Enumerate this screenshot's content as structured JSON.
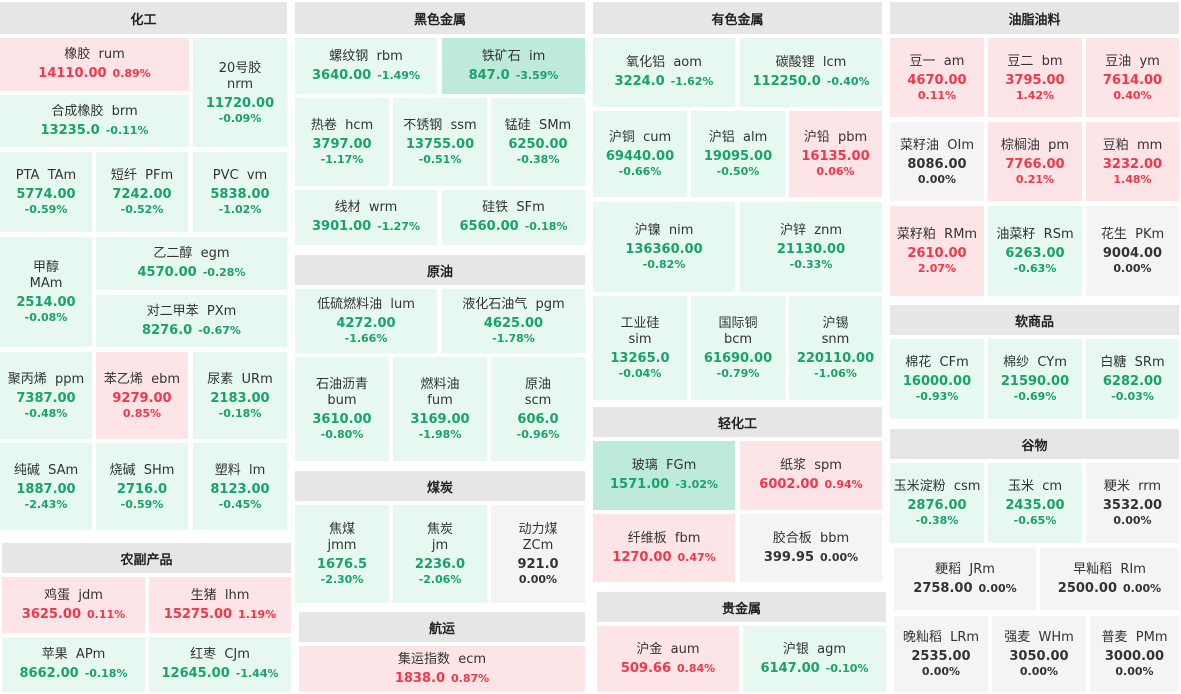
{
  "sections": [
    {
      "title": "化工",
      "items": [
        {
          "name": "橡胶  rum",
          "price": "14110.00",
          "change": "0.89%",
          "trend": "up"
        },
        {
          "name": "20号胶 nrm",
          "price": "11720.00",
          "change": "-0.09%",
          "trend": "down"
        },
        {
          "name": "合成橡胶  brm",
          "price": "13235.0",
          "change": "-0.11%",
          "trend": "down"
        },
        {
          "name": "PTA  TAm",
          "price": "5774.00",
          "change": "-0.59%",
          "trend": "down"
        },
        {
          "name": "短纤  PFm",
          "price": "7242.00",
          "change": "-0.52%",
          "trend": "down"
        },
        {
          "name": "PVC  vm",
          "price": "5838.00",
          "change": "-1.02%",
          "trend": "down"
        },
        {
          "name": "甲醇 MAm",
          "price": "2514.00",
          "change": "-0.08%",
          "trend": "down"
        },
        {
          "name": "乙二醇  egm",
          "price": "4570.00",
          "change": "-0.28%",
          "trend": "down"
        },
        {
          "name": "对二甲苯  PXm",
          "price": "8276.0",
          "change": "-0.67%",
          "trend": "down"
        },
        {
          "name": "聚丙烯  ppm",
          "price": "7387.00",
          "change": "-0.48%",
          "trend": "down"
        },
        {
          "name": "苯乙烯  ebm",
          "price": "9279.00",
          "change": "0.85%",
          "trend": "up"
        },
        {
          "name": "尿素  URm",
          "price": "2183.00",
          "change": "-0.18%",
          "trend": "down"
        },
        {
          "name": "纯碱  SAm",
          "price": "1887.00",
          "change": "-2.43%",
          "trend": "down"
        },
        {
          "name": "烧碱  SHm",
          "price": "2716.0",
          "change": "-0.59%",
          "trend": "down"
        },
        {
          "name": "塑料  lm",
          "price": "8123.00",
          "change": "-0.45%",
          "trend": "down"
        }
      ]
    },
    {
      "title": "农副产品",
      "items": [
        {
          "name": "鸡蛋  jdm",
          "price": "3625.00",
          "change": "0.11%",
          "trend": "up"
        },
        {
          "name": "生猪  lhm",
          "price": "15275.00",
          "change": "1.19%",
          "trend": "up"
        },
        {
          "name": "苹果  APm",
          "price": "8662.00",
          "change": "-0.18%",
          "trend": "down"
        },
        {
          "name": "红枣  CJm",
          "price": "12645.00",
          "change": "-1.44%",
          "trend": "down"
        }
      ]
    },
    {
      "title": "黑色金属",
      "items": [
        {
          "name": "螺纹钢  rbm",
          "price": "3640.00",
          "change": "-1.49%",
          "trend": "down"
        },
        {
          "name": "铁矿石  im",
          "price": "847.0",
          "change": "-3.59%",
          "trend": "down"
        },
        {
          "name": "热卷  hcm",
          "price": "3797.00",
          "change": "-1.17%",
          "trend": "down"
        },
        {
          "name": "不锈钢  ssm",
          "price": "13755.00",
          "change": "-0.51%",
          "trend": "down"
        },
        {
          "name": "锰硅  SMm",
          "price": "6250.00",
          "change": "-0.38%",
          "trend": "down"
        },
        {
          "name": "线材  wrm",
          "price": "3901.00",
          "change": "-1.27%",
          "trend": "down"
        },
        {
          "name": "硅铁  SFm",
          "price": "6560.00",
          "change": "-0.18%",
          "trend": "down"
        }
      ]
    },
    {
      "title": "原油",
      "items": [
        {
          "name": "低硫燃料油  lum",
          "price": "4272.00",
          "change": "-1.66%",
          "trend": "down"
        },
        {
          "name": "液化石油气  pgm",
          "price": "4625.00",
          "change": "-1.78%",
          "trend": "down"
        },
        {
          "name": "石油沥青 bum",
          "price": "3610.00",
          "change": "-0.80%",
          "trend": "down"
        },
        {
          "name": "燃料油 fum",
          "price": "3169.00",
          "change": "-1.98%",
          "trend": "down"
        },
        {
          "name": "原油 scm",
          "price": "606.0",
          "change": "-0.96%",
          "trend": "down"
        }
      ]
    },
    {
      "title": "煤炭",
      "items": [
        {
          "name": "焦煤 jmm",
          "price": "1676.5",
          "change": "-2.30%",
          "trend": "down"
        },
        {
          "name": "焦炭 jm",
          "price": "2236.0",
          "change": "-2.06%",
          "trend": "down"
        },
        {
          "name": "动力煤 ZCm",
          "price": "921.0",
          "change": "0.00%",
          "trend": "flat"
        }
      ]
    },
    {
      "title": "航运",
      "items": [
        {
          "name": "集运指数  ecm",
          "price": "1838.0",
          "change": "0.87%",
          "trend": "up"
        }
      ]
    },
    {
      "title": "有色金属",
      "items": [
        {
          "name": "氧化铝  aom",
          "price": "3224.0",
          "change": "-1.62%",
          "trend": "down"
        },
        {
          "name": "碳酸锂  lcm",
          "price": "112250.0",
          "change": "-0.40%",
          "trend": "down"
        },
        {
          "name": "沪铜  cum",
          "price": "69440.00",
          "change": "-0.66%",
          "trend": "down"
        },
        {
          "name": "沪铝  alm",
          "price": "19095.00",
          "change": "-0.50%",
          "trend": "down"
        },
        {
          "name": "沪铅  pbm",
          "price": "16135.00",
          "change": "0.06%",
          "trend": "up"
        },
        {
          "name": "沪镍  nim",
          "price": "136360.00",
          "change": "-0.82%",
          "trend": "down"
        },
        {
          "name": "沪锌  znm",
          "price": "21130.00",
          "change": "-0.33%",
          "trend": "down"
        },
        {
          "name": "工业硅 sim",
          "price": "13265.0",
          "change": "-0.04%",
          "trend": "down"
        },
        {
          "name": "国际铜 bcm",
          "price": "61690.00",
          "change": "-0.79%",
          "trend": "down"
        },
        {
          "name": "沪锡 snm",
          "price": "220110.00",
          "change": "-1.06%",
          "trend": "down"
        }
      ]
    },
    {
      "title": "轻化工",
      "items": [
        {
          "name": "玻璃  FGm",
          "price": "1571.00",
          "change": "-3.02%",
          "trend": "down"
        },
        {
          "name": "纸浆  spm",
          "price": "6002.00",
          "change": "0.94%",
          "trend": "up"
        },
        {
          "name": "纤维板  fbm",
          "price": "1270.00",
          "change": "0.47%",
          "trend": "up"
        },
        {
          "name": "胶合板  bbm",
          "price": "399.95",
          "change": "0.00%",
          "trend": "flat"
        }
      ]
    },
    {
      "title": "贵金属",
      "items": [
        {
          "name": "沪金  aum",
          "price": "509.66",
          "change": "0.84%",
          "trend": "up"
        },
        {
          "name": "沪银  agm",
          "price": "6147.00",
          "change": "-0.10%",
          "trend": "down"
        }
      ]
    },
    {
      "title": "油脂油料",
      "items": [
        {
          "name": "豆一  am",
          "price": "4670.00",
          "change": "0.11%",
          "trend": "up"
        },
        {
          "name": "豆二  bm",
          "price": "3795.00",
          "change": "1.42%",
          "trend": "up"
        },
        {
          "name": "豆油  ym",
          "price": "7614.00",
          "change": "0.40%",
          "trend": "up"
        },
        {
          "name": "菜籽油  OIm",
          "price": "8086.00",
          "change": "0.00%",
          "trend": "flat"
        },
        {
          "name": "棕榈油  pm",
          "price": "7766.00",
          "change": "0.21%",
          "trend": "up"
        },
        {
          "name": "豆粕  mm",
          "price": "3232.00",
          "change": "1.48%",
          "trend": "up"
        },
        {
          "name": "菜籽粕  RMm",
          "price": "2610.00",
          "change": "2.07%",
          "trend": "up"
        },
        {
          "name": "油菜籽  RSm",
          "price": "6263.00",
          "change": "-0.63%",
          "trend": "down"
        },
        {
          "name": "花生  PKm",
          "price": "9004.00",
          "change": "0.00%",
          "trend": "flat"
        }
      ]
    },
    {
      "title": "软商品",
      "items": [
        {
          "name": "棉花  CFm",
          "price": "16000.00",
          "change": "-0.93%",
          "trend": "down"
        },
        {
          "name": "棉纱  CYm",
          "price": "21590.00",
          "change": "-0.69%",
          "trend": "down"
        },
        {
          "name": "白糖  SRm",
          "price": "6282.00",
          "change": "-0.03%",
          "trend": "down"
        }
      ]
    },
    {
      "title": "谷物",
      "items": [
        {
          "name": "玉米淀粉  csm",
          "price": "2876.00",
          "change": "-0.38%",
          "trend": "down"
        },
        {
          "name": "玉米  cm",
          "price": "2435.00",
          "change": "-0.65%",
          "trend": "down"
        },
        {
          "name": "粳米  rrm",
          "price": "3532.00",
          "change": "0.00%",
          "trend": "flat"
        },
        {
          "name": "粳稻  JRm",
          "price": "2758.00",
          "change": "0.00%",
          "trend": "flat"
        },
        {
          "name": "早籼稻  RIm",
          "price": "2500.00",
          "change": "0.00%",
          "trend": "flat"
        },
        {
          "name": "晚籼稻  LRm",
          "price": "2535.00",
          "change": "0.00%",
          "trend": "flat"
        },
        {
          "name": "强麦  WHm",
          "price": "3050.00",
          "change": "0.00%",
          "trend": "flat"
        },
        {
          "name": "普麦  PMm",
          "price": "3000.00",
          "change": "0.00%",
          "trend": "flat"
        }
      ]
    }
  ],
  "colors": {
    "up": "#f0384b",
    "down": "#17a36a",
    "flat": "#333333",
    "up_bg": "#fde4e6",
    "down_bg": "#e6f8ef",
    "down_strong_bg": "#bdeadb",
    "flat_bg": "#f4f4f4",
    "header_bg": "#e6e6e6"
  }
}
